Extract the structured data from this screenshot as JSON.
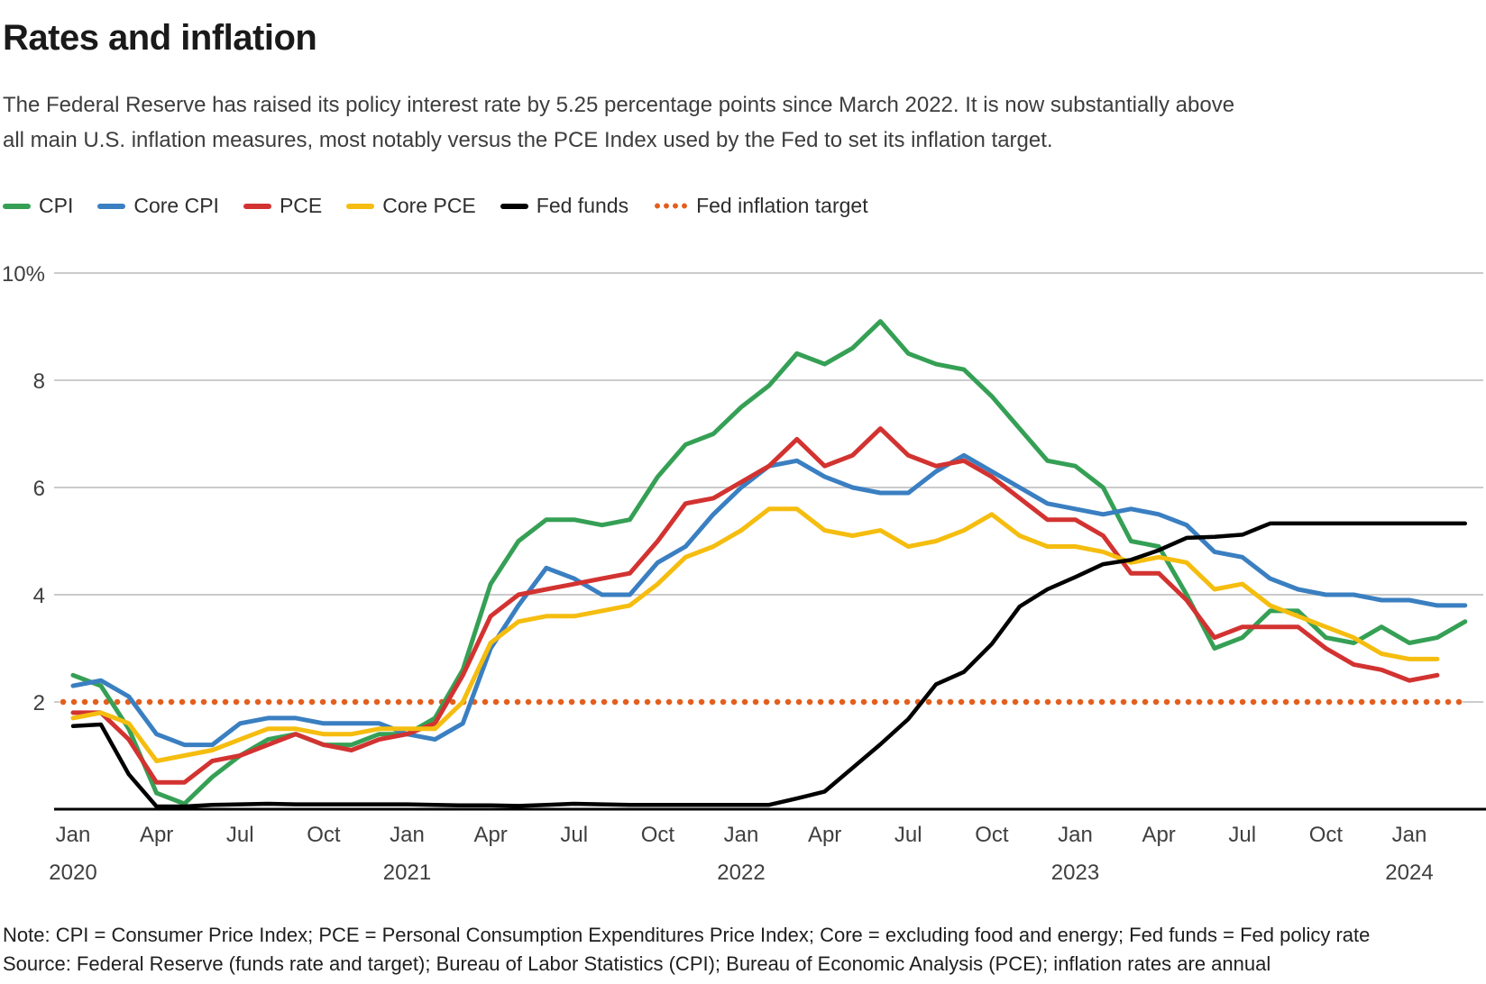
{
  "header": {
    "title": "Rates and inflation",
    "subtitle_line1": "The Federal Reserve has raised its policy interest rate by 5.25 percentage points since March 2022. It is now substantially above",
    "subtitle_line2": "all main U.S. inflation measures, most notably versus the PCE Index used by the Fed to set its inflation target."
  },
  "legend": {
    "items": [
      {
        "id": "cpi",
        "label": "CPI",
        "color": "#35a055",
        "style": "solid"
      },
      {
        "id": "core-cpi",
        "label": "Core CPI",
        "color": "#3a7fc1",
        "style": "solid"
      },
      {
        "id": "pce",
        "label": "PCE",
        "color": "#d23331",
        "style": "solid"
      },
      {
        "id": "core-pce",
        "label": "Core PCE",
        "color": "#f5bd0f",
        "style": "solid"
      },
      {
        "id": "fed-funds",
        "label": "Fed funds",
        "color": "#000000",
        "style": "solid"
      },
      {
        "id": "fed-target",
        "label": "Fed inflation target",
        "color": "#e35f1e",
        "style": "dotted"
      }
    ]
  },
  "chart_data": {
    "type": "line",
    "title": "Rates and inflation",
    "unit": "percent, annual rates",
    "grid": true,
    "legend_position": "top",
    "ylim": [
      0,
      10
    ],
    "y_axis": {
      "ticks": [
        2,
        4,
        6,
        8,
        10
      ],
      "top_tick_label": "10%"
    },
    "x_axis": {
      "tick_every_months": 3,
      "year_labels": {
        "0": "2020",
        "12": "2021",
        "24": "2022",
        "36": "2023",
        "48": "2024"
      }
    },
    "x": [
      "Jan 2020",
      "Feb 2020",
      "Mar 2020",
      "Apr 2020",
      "May 2020",
      "Jun 2020",
      "Jul 2020",
      "Aug 2020",
      "Sep 2020",
      "Oct 2020",
      "Nov 2020",
      "Dec 2020",
      "Jan 2021",
      "Feb 2021",
      "Mar 2021",
      "Apr 2021",
      "May 2021",
      "Jun 2021",
      "Jul 2021",
      "Aug 2021",
      "Sep 2021",
      "Oct 2021",
      "Nov 2021",
      "Dec 2021",
      "Jan 2022",
      "Feb 2022",
      "Mar 2022",
      "Apr 2022",
      "May 2022",
      "Jun 2022",
      "Jul 2022",
      "Aug 2022",
      "Sep 2022",
      "Oct 2022",
      "Nov 2022",
      "Dec 2022",
      "Jan 2023",
      "Feb 2023",
      "Mar 2023",
      "Apr 2023",
      "May 2023",
      "Jun 2023",
      "Jul 2023",
      "Aug 2023",
      "Sep 2023",
      "Oct 2023",
      "Nov 2023",
      "Dec 2023",
      "Jan 2024",
      "Feb 2024",
      "Mar 2024"
    ],
    "series": [
      {
        "name": "CPI",
        "color": "#35a055",
        "values": [
          2.5,
          2.3,
          1.5,
          0.3,
          0.1,
          0.6,
          1.0,
          1.3,
          1.4,
          1.2,
          1.2,
          1.4,
          1.4,
          1.7,
          2.6,
          4.2,
          5.0,
          5.4,
          5.4,
          5.3,
          5.4,
          6.2,
          6.8,
          7.0,
          7.5,
          7.9,
          8.5,
          8.3,
          8.6,
          9.1,
          8.5,
          8.3,
          8.2,
          7.7,
          7.1,
          6.5,
          6.4,
          6.0,
          5.0,
          4.9,
          4.0,
          3.0,
          3.2,
          3.7,
          3.7,
          3.2,
          3.1,
          3.4,
          3.1,
          3.2,
          3.5
        ]
      },
      {
        "name": "Core CPI",
        "color": "#3a7fc1",
        "values": [
          2.3,
          2.4,
          2.1,
          1.4,
          1.2,
          1.2,
          1.6,
          1.7,
          1.7,
          1.6,
          1.6,
          1.6,
          1.4,
          1.3,
          1.6,
          3.0,
          3.8,
          4.5,
          4.3,
          4.0,
          4.0,
          4.6,
          4.9,
          5.5,
          6.0,
          6.4,
          6.5,
          6.2,
          6.0,
          5.9,
          5.9,
          6.3,
          6.6,
          6.3,
          6.0,
          5.7,
          5.6,
          5.5,
          5.6,
          5.5,
          5.3,
          4.8,
          4.7,
          4.3,
          4.1,
          4.0,
          4.0,
          3.9,
          3.9,
          3.8,
          3.8
        ]
      },
      {
        "name": "PCE",
        "color": "#d23331",
        "values": [
          1.8,
          1.8,
          1.3,
          0.5,
          0.5,
          0.9,
          1.0,
          1.2,
          1.4,
          1.2,
          1.1,
          1.3,
          1.4,
          1.6,
          2.5,
          3.6,
          4.0,
          4.1,
          4.2,
          4.3,
          4.4,
          5.0,
          5.7,
          5.8,
          6.1,
          6.4,
          6.9,
          6.4,
          6.6,
          7.1,
          6.6,
          6.4,
          6.5,
          6.2,
          5.8,
          5.4,
          5.4,
          5.1,
          4.4,
          4.4,
          3.9,
          3.2,
          3.4,
          3.4,
          3.4,
          3.0,
          2.7,
          2.6,
          2.4,
          2.5
        ]
      },
      {
        "name": "Core PCE",
        "color": "#f5bd0f",
        "values": [
          1.7,
          1.8,
          1.6,
          0.9,
          1.0,
          1.1,
          1.3,
          1.5,
          1.5,
          1.4,
          1.4,
          1.5,
          1.5,
          1.5,
          2.0,
          3.1,
          3.5,
          3.6,
          3.6,
          3.7,
          3.8,
          4.2,
          4.7,
          4.9,
          5.2,
          5.6,
          5.6,
          5.2,
          5.1,
          5.2,
          4.9,
          5.0,
          5.2,
          5.5,
          5.1,
          4.9,
          4.9,
          4.8,
          4.6,
          4.7,
          4.6,
          4.1,
          4.2,
          3.8,
          3.6,
          3.4,
          3.2,
          2.9,
          2.8,
          2.8
        ]
      },
      {
        "name": "Fed funds",
        "color": "#000000",
        "values": [
          1.55,
          1.58,
          0.65,
          0.05,
          0.05,
          0.08,
          0.09,
          0.1,
          0.09,
          0.09,
          0.09,
          0.09,
          0.09,
          0.08,
          0.07,
          0.07,
          0.06,
          0.08,
          0.1,
          0.09,
          0.08,
          0.08,
          0.08,
          0.08,
          0.08,
          0.08,
          0.2,
          0.33,
          0.77,
          1.21,
          1.68,
          2.33,
          2.56,
          3.08,
          3.78,
          4.1,
          4.33,
          4.57,
          4.65,
          4.83,
          5.06,
          5.08,
          5.12,
          5.33,
          5.33,
          5.33,
          5.33,
          5.33,
          5.33,
          5.33,
          5.33
        ]
      }
    ],
    "target_line": {
      "name": "Fed inflation target",
      "value": 2,
      "color": "#e35f1e",
      "style": "dotted"
    },
    "colors": {
      "grid": "#cbcbcb",
      "axis": "#000000"
    }
  },
  "footer": {
    "note": "Note: CPI = Consumer Price Index; PCE = Personal Consumption Expenditures Price Index; Core = excluding food and energy; Fed funds = Fed policy rate",
    "source": "Source: Federal Reserve (funds rate and target); Bureau of Labor Statistics (CPI); Bureau of Economic Analysis (PCE); inflation rates are annual"
  }
}
